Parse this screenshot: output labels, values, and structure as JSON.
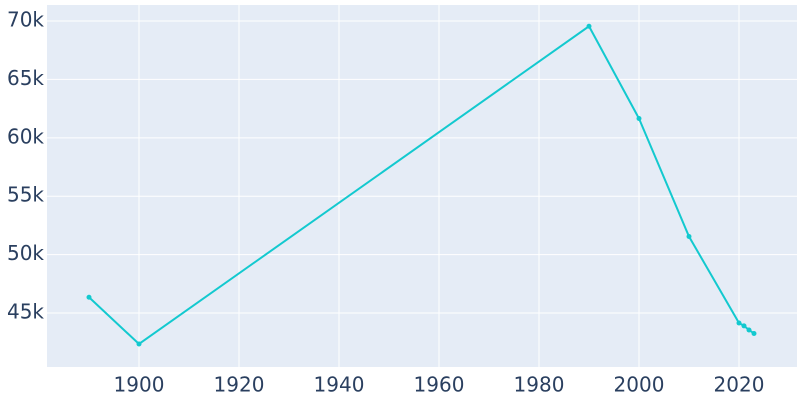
{
  "chart_data": {
    "type": "line",
    "x": [
      1890,
      1900,
      1990,
      2000,
      2010,
      2020,
      2021,
      2022,
      2023
    ],
    "series": [
      {
        "color": "#13c9cf",
        "values": [
          46350,
          42350,
          69550,
          61650,
          51550,
          44150,
          43900,
          43550,
          43250
        ]
      }
    ],
    "xlim": [
      1881.6,
      2031.6
    ],
    "xticks": [
      1900,
      1920,
      1940,
      1960,
      1980,
      2000,
      2020
    ],
    "ylim": [
      40380,
      71370
    ],
    "yticks": [
      {
        "value": 45000,
        "label": "45k"
      },
      {
        "value": 50000,
        "label": "50k"
      },
      {
        "value": 55000,
        "label": "55k"
      },
      {
        "value": 60000,
        "label": "60k"
      },
      {
        "value": 65000,
        "label": "65k"
      },
      {
        "value": 70000,
        "label": "70k"
      }
    ],
    "grid": true
  }
}
